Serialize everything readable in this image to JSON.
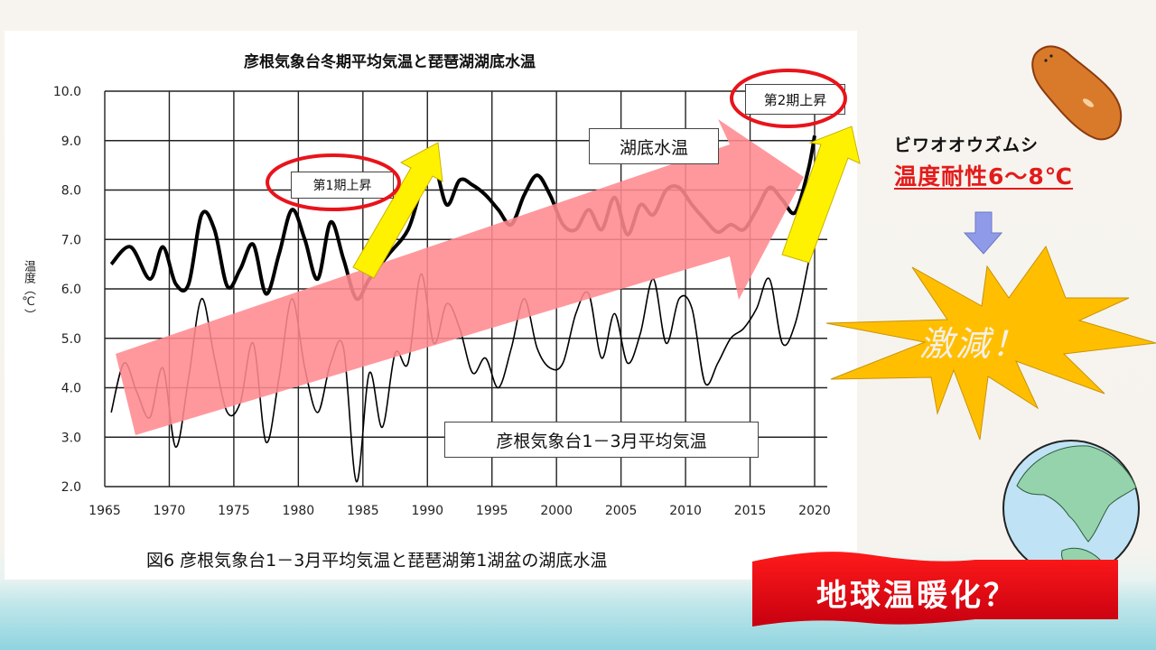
{
  "chart_data": {
    "type": "line",
    "title": "彦根気象台冬期平均気温と琵琶湖湖底水温",
    "caption": "図6  彦根気象台1－3月平均気温と琵琶湖第1湖盆の湖底水温",
    "xlabel": "",
    "ylabel": "温度（℃）",
    "xlim": [
      1965,
      2020
    ],
    "ylim": [
      2.0,
      10.0
    ],
    "x_ticks": [
      "1965",
      "1970",
      "1975",
      "1980",
      "1985",
      "1990",
      "1995",
      "2000",
      "2005",
      "2010",
      "2015",
      "2020"
    ],
    "y_ticks": [
      "10.0",
      "9.0",
      "8.0",
      "7.0",
      "6.0",
      "5.0",
      "4.0",
      "3.0",
      "2.0"
    ],
    "grid": true,
    "series": [
      {
        "name": "湖底水温",
        "style": "bold",
        "x": [
          1965.5,
          1967,
          1968.5,
          1969.5,
          1970.5,
          1971.5,
          1972.5,
          1973.5,
          1974.5,
          1975.5,
          1976.5,
          1977.5,
          1978.5,
          1979.5,
          1980.5,
          1981.5,
          1982.5,
          1983.5,
          1984.5,
          1985.5,
          1987,
          1988.5,
          1989.5,
          1990.5,
          1991.5,
          1992.5,
          1993.5,
          1994.5,
          1995.5,
          1996.5,
          1997.5,
          1998.5,
          1999.5,
          2000.5,
          2001.5,
          2002.5,
          2003.5,
          2004.5,
          2005.5,
          2006.5,
          2007.5,
          2008.5,
          2009.5,
          2010.5,
          2011.5,
          2012.5,
          2013.5,
          2014.5,
          2015.5,
          2016.5,
          2017.5,
          2018.5,
          2019.5,
          2020
        ],
        "values": [
          6.5,
          6.85,
          6.2,
          6.85,
          6.1,
          6.1,
          7.5,
          7.2,
          6.05,
          6.4,
          6.9,
          5.9,
          6.7,
          7.6,
          7.0,
          6.2,
          7.35,
          6.6,
          5.8,
          6.2,
          6.7,
          7.2,
          8.0,
          8.5,
          7.7,
          8.2,
          8.1,
          7.9,
          7.6,
          7.3,
          7.9,
          8.3,
          7.9,
          7.3,
          7.2,
          7.6,
          7.2,
          7.85,
          7.1,
          7.7,
          7.5,
          8.0,
          8.05,
          7.7,
          7.4,
          7.15,
          7.3,
          7.2,
          7.6,
          8.05,
          7.8,
          7.55,
          8.4,
          9.1
        ]
      },
      {
        "name": "彦根気象台1－3月平均気温",
        "style": "thin",
        "x": [
          1965.5,
          1966.5,
          1967.5,
          1968.5,
          1969.5,
          1970.5,
          1971.5,
          1972.5,
          1973.5,
          1974.5,
          1975.5,
          1976.5,
          1977.5,
          1978.5,
          1979.5,
          1980.5,
          1981.5,
          1982.5,
          1983.5,
          1984.5,
          1985.5,
          1986.5,
          1987.5,
          1988.5,
          1989.5,
          1990.5,
          1991.5,
          1992.5,
          1993.5,
          1994.5,
          1995.5,
          1996.5,
          1997.5,
          1998.5,
          1999.5,
          2000.5,
          2001.5,
          2002.5,
          2003.5,
          2004.5,
          2005.5,
          2006.5,
          2007.5,
          2008.5,
          2009.5,
          2010.5,
          2011.5,
          2012.5,
          2013.5,
          2014.5,
          2015.5,
          2016.5,
          2017.5,
          2018.5,
          2019.5,
          2020
        ],
        "values": [
          3.5,
          4.5,
          3.9,
          3.4,
          4.4,
          2.8,
          4.2,
          5.8,
          4.6,
          3.5,
          3.7,
          4.9,
          2.9,
          4.2,
          5.8,
          4.4,
          3.5,
          4.5,
          4.8,
          2.1,
          4.3,
          3.2,
          4.7,
          4.5,
          6.3,
          4.9,
          5.7,
          5.2,
          4.3,
          4.6,
          4.0,
          4.8,
          5.8,
          4.8,
          4.4,
          4.5,
          5.5,
          5.9,
          4.6,
          5.5,
          4.5,
          5.1,
          6.2,
          4.9,
          5.8,
          5.6,
          4.1,
          4.5,
          5.0,
          5.2,
          5.6,
          6.2,
          4.9,
          5.3,
          6.5,
          7.2
        ]
      }
    ],
    "annotations": [
      {
        "text": "第1期上昇",
        "near": [
          1982,
          8.1
        ],
        "circled": true
      },
      {
        "text": "第2期上昇",
        "near": [
          2019,
          9.8
        ],
        "circled": true
      },
      {
        "text": "湖底水温",
        "near": [
          2001,
          8.9
        ]
      },
      {
        "text": "彦根気象台1－3月平均気温",
        "near": [
          2000,
          2.9
        ]
      }
    ]
  },
  "slide": {
    "species_name": "ビワオオウズムシ",
    "tolerance": "温度耐性6～8℃",
    "burst_text": "激減！",
    "banner_text": "地球温暖化？",
    "colors": {
      "trend_arrow": "#ff8a8f",
      "rise_arrow": "#fff200",
      "circle": "#e8141b",
      "tolerance_text": "#e31b1b",
      "burst": "#ffbf00",
      "banner": "#e60012",
      "down_arrow": "#8f9be8"
    }
  }
}
